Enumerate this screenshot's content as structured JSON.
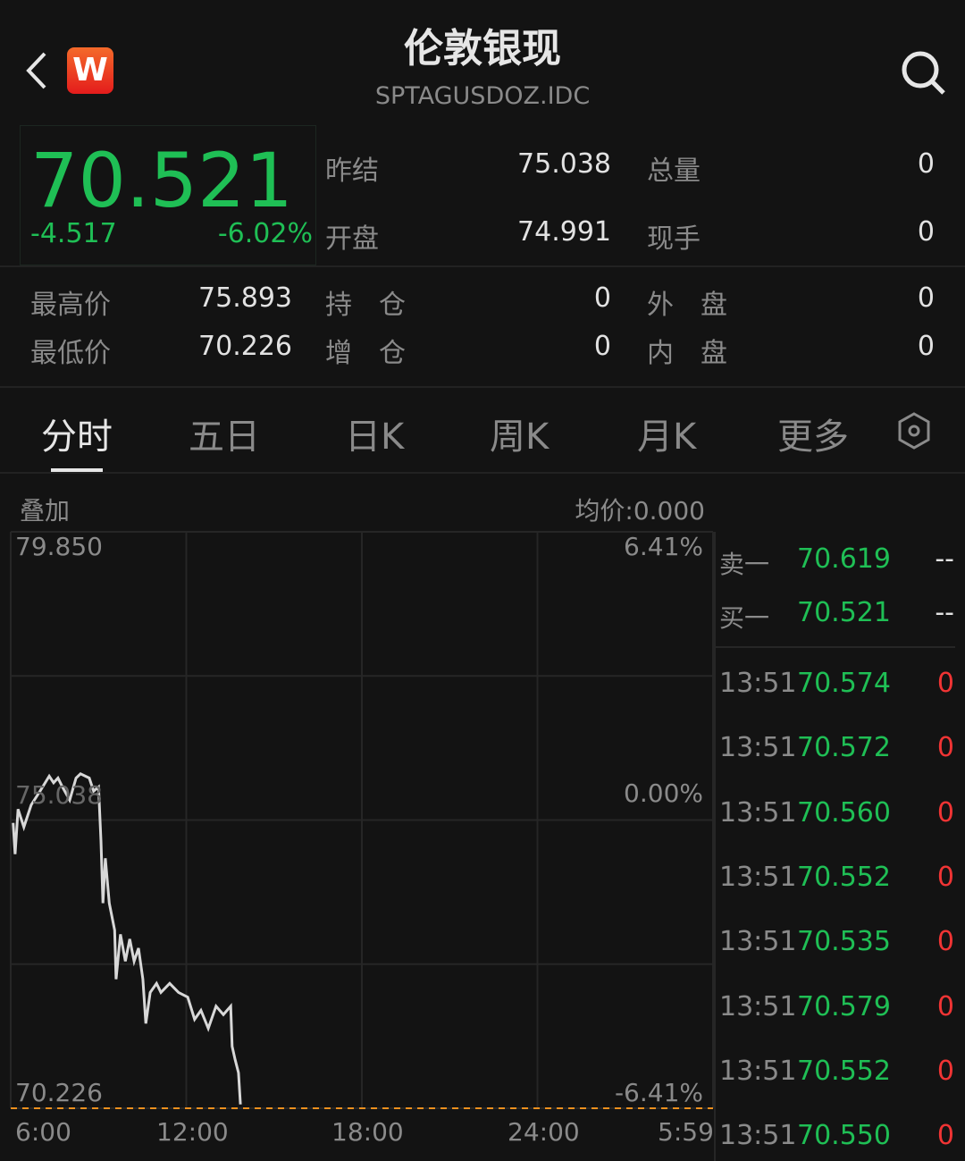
{
  "header": {
    "title": "伦敦银现",
    "code": "SPTAGUSDOZ.IDC",
    "logo_text": "W",
    "back_icon": "chevron-left",
    "search_icon": "search"
  },
  "quote": {
    "price": "70.521",
    "change": "-4.517",
    "change_pct": "-6.02%"
  },
  "stats": [
    {
      "label": "昨结",
      "value": "75.038"
    },
    {
      "label": "开盘",
      "value": "74.991"
    },
    {
      "label": "总量",
      "value": "0"
    },
    {
      "label": "现手",
      "value": "0"
    },
    {
      "label": "最高价",
      "value": "75.893"
    },
    {
      "label": "最低价",
      "value": "70.226"
    },
    {
      "label": "持　仓",
      "value": "0"
    },
    {
      "label": "增　仓",
      "value": "0"
    },
    {
      "label": "外　盘",
      "value": "0"
    },
    {
      "label": "内　盘",
      "value": "0"
    }
  ],
  "tabs": [
    {
      "label": "分时",
      "active": true
    },
    {
      "label": "五日"
    },
    {
      "label": "日K"
    },
    {
      "label": "周K"
    },
    {
      "label": "月K"
    },
    {
      "label": "更多"
    }
  ],
  "chart_bar": {
    "overlay": "叠加",
    "avg": "均价:0.000"
  },
  "colors": {
    "up": "#f03434",
    "down": "#1fbf55",
    "line": "#d8d8d8",
    "low_line": "#f0901e",
    "bg": "#131313"
  },
  "chart_data": {
    "type": "line",
    "y_top_label": "79.850",
    "y_mid_label": "75.038",
    "y_bottom_label": "70.226",
    "pct_top_label": "6.41%",
    "pct_mid_label": "0.00%",
    "pct_bottom_label": "-6.41%",
    "ylim": [
      70.226,
      79.85
    ],
    "x_ticks": [
      "6:00",
      "12:00",
      "18:00",
      "24:00",
      "5:59"
    ],
    "reference_price": 75.038,
    "low_line": 70.226,
    "series": [
      {
        "points": [
          [
            "06:05",
            74.99
          ],
          [
            "06:09",
            74.47
          ],
          [
            "06:15",
            75.22
          ],
          [
            "06:27",
            74.92
          ],
          [
            "06:42",
            75.29
          ],
          [
            "07:00",
            75.52
          ],
          [
            "07:19",
            75.77
          ],
          [
            "07:28",
            75.66
          ],
          [
            "07:37",
            75.74
          ],
          [
            "07:46",
            75.59
          ],
          [
            "08:01",
            75.37
          ],
          [
            "08:14",
            75.74
          ],
          [
            "08:23",
            75.81
          ],
          [
            "08:41",
            75.74
          ],
          [
            "08:50",
            75.52
          ],
          [
            "09:00",
            75.59
          ],
          [
            "09:05",
            74.69
          ],
          [
            "09:09",
            73.65
          ],
          [
            "09:14",
            74.4
          ],
          [
            "09:22",
            73.65
          ],
          [
            "09:33",
            73.2
          ],
          [
            "09:36",
            72.38
          ],
          [
            "09:45",
            73.13
          ],
          [
            "09:55",
            72.68
          ],
          [
            "10:04",
            73.05
          ],
          [
            "10:13",
            72.68
          ],
          [
            "10:22",
            72.9
          ],
          [
            "10:31",
            72.38
          ],
          [
            "10:37",
            71.64
          ],
          [
            "10:46",
            72.16
          ],
          [
            "10:59",
            72.31
          ],
          [
            "11:08",
            72.16
          ],
          [
            "11:26",
            72.31
          ],
          [
            "11:44",
            72.16
          ],
          [
            "12:03",
            72.08
          ],
          [
            "12:17",
            71.71
          ],
          [
            "12:30",
            71.86
          ],
          [
            "12:45",
            71.56
          ],
          [
            "13:01",
            71.93
          ],
          [
            "13:16",
            71.79
          ],
          [
            "13:31",
            71.93
          ],
          [
            "13:34",
            71.26
          ],
          [
            "13:40",
            71.04
          ],
          [
            "13:47",
            70.82
          ],
          [
            "13:51",
            70.29
          ]
        ]
      }
    ]
  },
  "orderbook": [
    {
      "label": "卖一",
      "price": "70.619",
      "vol": "--"
    },
    {
      "label": "买一",
      "price": "70.521",
      "vol": "--"
    }
  ],
  "ticks": [
    {
      "time": "13:51",
      "price": "70.574",
      "vol": "0"
    },
    {
      "time": "13:51",
      "price": "70.572",
      "vol": "0"
    },
    {
      "time": "13:51",
      "price": "70.560",
      "vol": "0"
    },
    {
      "time": "13:51",
      "price": "70.552",
      "vol": "0"
    },
    {
      "time": "13:51",
      "price": "70.535",
      "vol": "0"
    },
    {
      "time": "13:51",
      "price": "70.579",
      "vol": "0"
    },
    {
      "time": "13:51",
      "price": "70.552",
      "vol": "0"
    },
    {
      "time": "13:51",
      "price": "70.550",
      "vol": "0"
    }
  ]
}
